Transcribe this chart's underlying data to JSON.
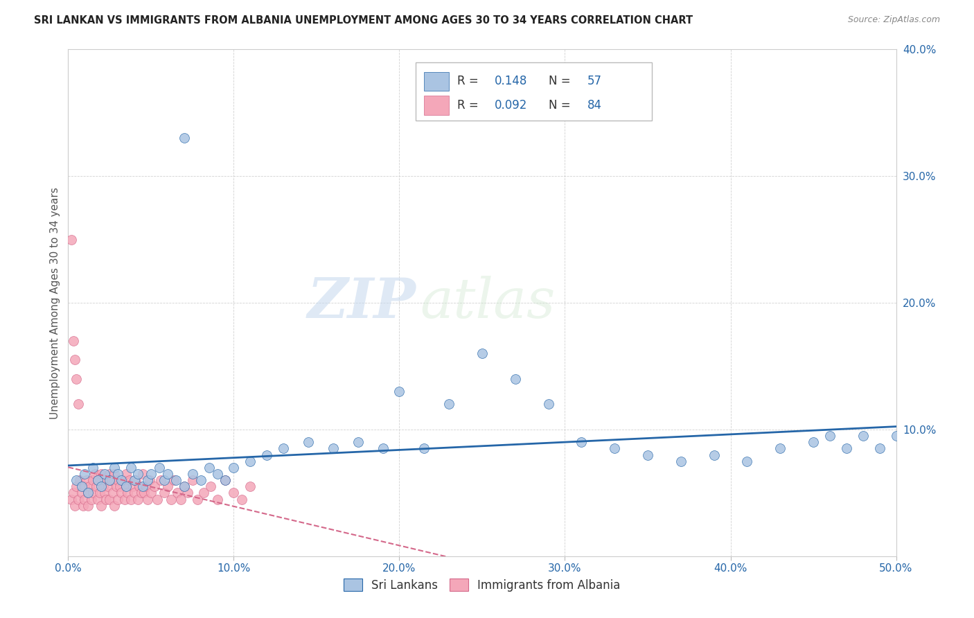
{
  "title": "SRI LANKAN VS IMMIGRANTS FROM ALBANIA UNEMPLOYMENT AMONG AGES 30 TO 34 YEARS CORRELATION CHART",
  "source": "Source: ZipAtlas.com",
  "ylabel": "Unemployment Among Ages 30 to 34 years",
  "xlim": [
    0,
    0.5
  ],
  "ylim": [
    0,
    0.4
  ],
  "xticks": [
    0.0,
    0.1,
    0.2,
    0.3,
    0.4,
    0.5
  ],
  "yticks": [
    0.0,
    0.1,
    0.2,
    0.3,
    0.4
  ],
  "sri_lanka_color": "#aac4e2",
  "albania_color": "#f4a7b9",
  "sri_lanka_line_color": "#2566a8",
  "albania_line_color": "#d4688a",
  "sri_lanka_R": 0.148,
  "sri_lanka_N": 57,
  "albania_R": 0.092,
  "albania_N": 84,
  "watermark_zip": "ZIP",
  "watermark_atlas": "atlas",
  "background_color": "#ffffff",
  "sri_lankans_x": [
    0.005,
    0.008,
    0.01,
    0.012,
    0.015,
    0.018,
    0.02,
    0.022,
    0.025,
    0.028,
    0.03,
    0.032,
    0.035,
    0.038,
    0.04,
    0.042,
    0.045,
    0.048,
    0.05,
    0.055,
    0.058,
    0.06,
    0.065,
    0.07,
    0.075,
    0.08,
    0.085,
    0.09,
    0.095,
    0.1,
    0.11,
    0.12,
    0.13,
    0.145,
    0.16,
    0.175,
    0.19,
    0.2,
    0.215,
    0.23,
    0.25,
    0.27,
    0.29,
    0.31,
    0.33,
    0.35,
    0.37,
    0.39,
    0.41,
    0.43,
    0.45,
    0.46,
    0.47,
    0.48,
    0.49,
    0.5,
    0.07
  ],
  "sri_lankans_y": [
    0.06,
    0.055,
    0.065,
    0.05,
    0.07,
    0.06,
    0.055,
    0.065,
    0.06,
    0.07,
    0.065,
    0.06,
    0.055,
    0.07,
    0.06,
    0.065,
    0.055,
    0.06,
    0.065,
    0.07,
    0.06,
    0.065,
    0.06,
    0.055,
    0.065,
    0.06,
    0.07,
    0.065,
    0.06,
    0.07,
    0.075,
    0.08,
    0.085,
    0.09,
    0.085,
    0.09,
    0.085,
    0.13,
    0.085,
    0.12,
    0.16,
    0.14,
    0.12,
    0.09,
    0.085,
    0.08,
    0.075,
    0.08,
    0.075,
    0.085,
    0.09,
    0.095,
    0.085,
    0.095,
    0.085,
    0.095,
    0.33
  ],
  "albania_x": [
    0.002,
    0.003,
    0.004,
    0.005,
    0.006,
    0.007,
    0.008,
    0.009,
    0.01,
    0.01,
    0.011,
    0.012,
    0.012,
    0.013,
    0.014,
    0.015,
    0.015,
    0.016,
    0.017,
    0.018,
    0.018,
    0.019,
    0.02,
    0.02,
    0.021,
    0.022,
    0.022,
    0.023,
    0.024,
    0.025,
    0.025,
    0.026,
    0.027,
    0.028,
    0.028,
    0.029,
    0.03,
    0.03,
    0.031,
    0.032,
    0.033,
    0.034,
    0.035,
    0.035,
    0.036,
    0.037,
    0.038,
    0.039,
    0.04,
    0.041,
    0.042,
    0.043,
    0.044,
    0.045,
    0.046,
    0.047,
    0.048,
    0.049,
    0.05,
    0.052,
    0.054,
    0.056,
    0.058,
    0.06,
    0.062,
    0.064,
    0.066,
    0.068,
    0.07,
    0.072,
    0.075,
    0.078,
    0.082,
    0.086,
    0.09,
    0.095,
    0.1,
    0.105,
    0.11,
    0.002,
    0.003,
    0.004,
    0.005,
    0.006
  ],
  "albania_y": [
    0.045,
    0.05,
    0.04,
    0.055,
    0.045,
    0.06,
    0.05,
    0.04,
    0.055,
    0.045,
    0.06,
    0.05,
    0.04,
    0.055,
    0.045,
    0.06,
    0.05,
    0.065,
    0.055,
    0.045,
    0.06,
    0.05,
    0.065,
    0.04,
    0.055,
    0.05,
    0.06,
    0.045,
    0.055,
    0.065,
    0.045,
    0.06,
    0.05,
    0.065,
    0.04,
    0.055,
    0.06,
    0.045,
    0.055,
    0.05,
    0.06,
    0.045,
    0.055,
    0.065,
    0.05,
    0.06,
    0.045,
    0.055,
    0.05,
    0.06,
    0.045,
    0.055,
    0.05,
    0.065,
    0.05,
    0.055,
    0.045,
    0.06,
    0.05,
    0.055,
    0.045,
    0.06,
    0.05,
    0.055,
    0.045,
    0.06,
    0.05,
    0.045,
    0.055,
    0.05,
    0.06,
    0.045,
    0.05,
    0.055,
    0.045,
    0.06,
    0.05,
    0.045,
    0.055,
    0.25,
    0.17,
    0.155,
    0.14,
    0.12
  ]
}
